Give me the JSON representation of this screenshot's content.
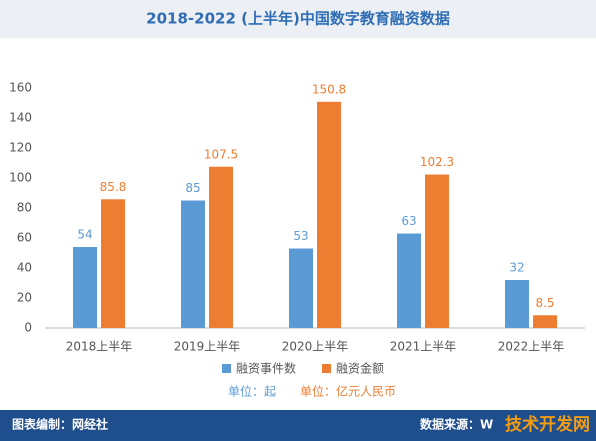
{
  "chart_data": {
    "type": "bar",
    "title": "2018-2022 (上半年)中国数字教育融资数据",
    "categories": [
      "2018上半年",
      "2019上半年",
      "2020上半年",
      "2021上半年",
      "2022上半年"
    ],
    "series": [
      {
        "name": "融资事件数",
        "color": "#5b9bd5",
        "values": [
          54,
          85,
          53,
          63,
          32
        ]
      },
      {
        "name": "融资金额",
        "color": "#ed7d31",
        "values": [
          85.8,
          107.5,
          150.8,
          102.3,
          8.5
        ]
      }
    ],
    "ylim": [
      0,
      160
    ],
    "yticks": [
      0,
      20,
      40,
      60,
      80,
      100,
      120,
      140,
      160
    ],
    "grid": false,
    "unit_labels": [
      "单位：起",
      "单位：亿元人民币"
    ]
  },
  "footer": {
    "left": "图表编制：网经社",
    "right": "数据来源：W"
  },
  "watermark": "技术开发网"
}
